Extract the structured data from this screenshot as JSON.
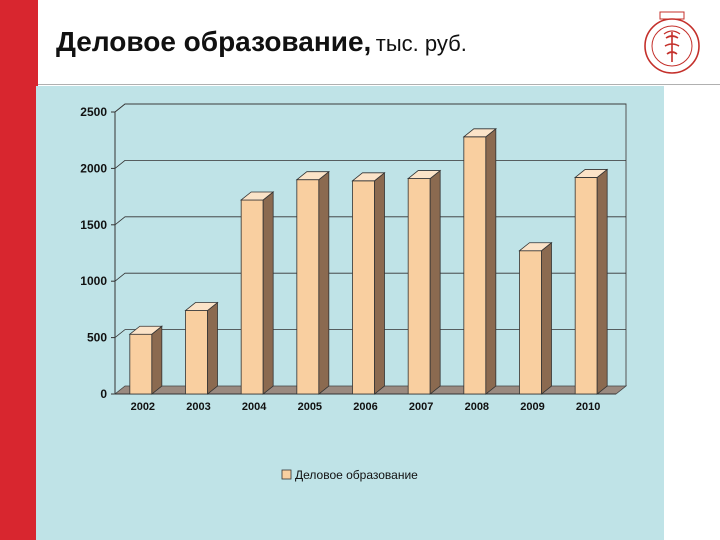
{
  "header": {
    "title": "Деловое образование,",
    "unit": "тыс. руб."
  },
  "colors": {
    "accent": "#d8262f",
    "chart_background": "#bfe3e7",
    "bar_front": "#f9cfa0",
    "bar_side": "#8b6a50",
    "bar_top": "#fbe3c8",
    "floor": "#9a8a80"
  },
  "logo": {
    "icon": "emblem-icon"
  },
  "chart_data": {
    "type": "bar",
    "categories": [
      "2002",
      "2003",
      "2004",
      "2005",
      "2006",
      "2007",
      "2008",
      "2009",
      "2010"
    ],
    "series": [
      {
        "name": "Деловое образование",
        "values": [
          530,
          740,
          1720,
          1900,
          1890,
          1910,
          2280,
          1270,
          1920
        ]
      }
    ],
    "yticks": [
      "0",
      "500",
      "1000",
      "1500",
      "2000",
      "2500"
    ],
    "ylim": [
      0,
      2500
    ],
    "legend_position": "bottom",
    "grid": true,
    "style": "3d-column"
  }
}
